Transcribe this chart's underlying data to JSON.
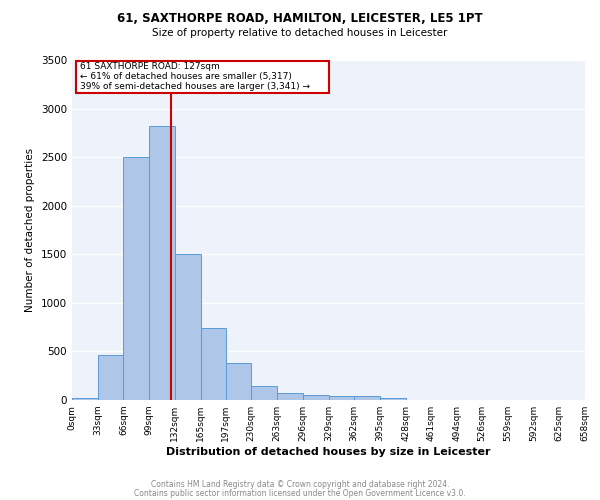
{
  "title_line1": "61, SAXTHORPE ROAD, HAMILTON, LEICESTER, LE5 1PT",
  "title_line2": "Size of property relative to detached houses in Leicester",
  "xlabel": "Distribution of detached houses by size in Leicester",
  "ylabel": "Number of detached properties",
  "footnote1": "Contains HM Land Registry data © Crown copyright and database right 2024.",
  "footnote2": "Contains public sector information licensed under the Open Government Licence v3.0.",
  "bin_edges": [
    0,
    33,
    66,
    99,
    132,
    165,
    197,
    230,
    263,
    296,
    329,
    362,
    395,
    428,
    461,
    494,
    526,
    559,
    592,
    625,
    658
  ],
  "bar_heights": [
    20,
    460,
    2500,
    2820,
    1500,
    740,
    380,
    145,
    70,
    50,
    40,
    40,
    20,
    0,
    0,
    0,
    0,
    0,
    0,
    0
  ],
  "bar_color": "#aec6e8",
  "bar_edgecolor": "#5b9bd5",
  "property_line_x": 127,
  "annotation_text_1": "61 SAXTHORPE ROAD: 127sqm",
  "annotation_text_2": "← 61% of detached houses are smaller (5,317)",
  "annotation_text_3": "39% of semi-detached houses are larger (3,341) →",
  "vline_color": "#cc0000",
  "annotation_box_edgecolor": "#cc0000",
  "ylim": [
    0,
    3500
  ],
  "background_color": "#eef2fa",
  "grid_color": "#ffffff",
  "tick_labels": [
    "0sqm",
    "33sqm",
    "66sqm",
    "99sqm",
    "132sqm",
    "165sqm",
    "197sqm",
    "230sqm",
    "263sqm",
    "296sqm",
    "329sqm",
    "362sqm",
    "395sqm",
    "428sqm",
    "461sqm",
    "494sqm",
    "526sqm",
    "559sqm",
    "592sqm",
    "625sqm",
    "658sqm"
  ]
}
